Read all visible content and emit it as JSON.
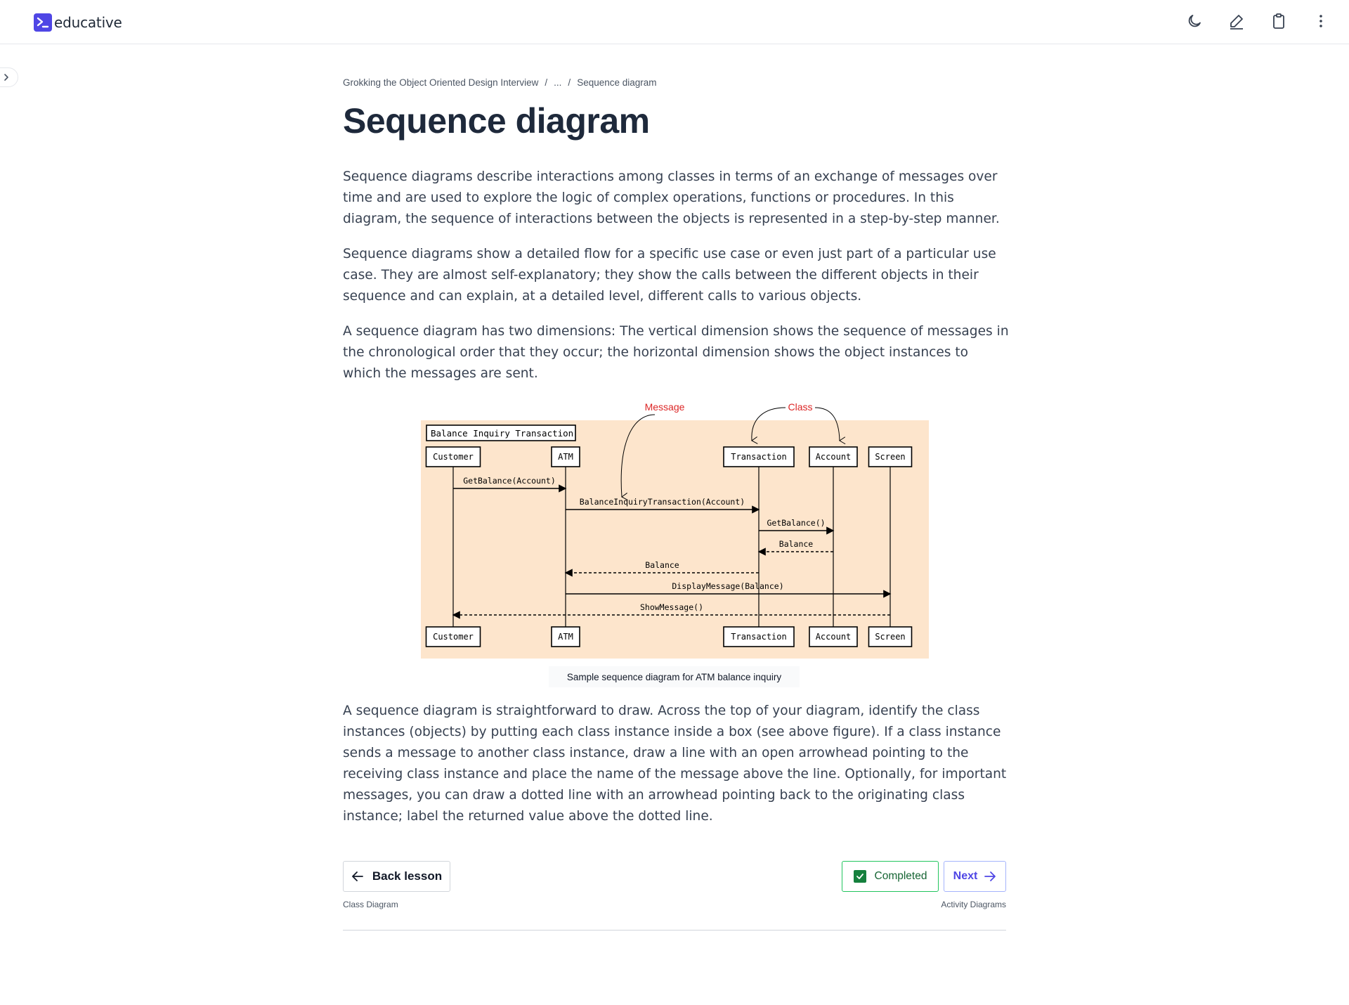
{
  "header": {
    "brand": "educative",
    "icons": [
      "moon-icon",
      "pen-icon",
      "clipboard-icon",
      "more-vertical-icon"
    ]
  },
  "sidebar": {
    "toggle_icon": "chevron-right-icon"
  },
  "breadcrumb": {
    "course": "Grokking the Object Oriented Design Interview",
    "separator": "/",
    "ellipsis": "...",
    "current": "Sequence diagram"
  },
  "page_title": "Sequence diagram",
  "paragraphs": [
    "Sequence diagrams describe interactions among classes in terms of an exchange of messages over time and are used to explore the logic of complex operations, functions or procedures. In this diagram, the sequence of interactions between the objects is represented in a step-by-step manner.",
    "Sequence diagrams show a detailed flow for a specific use case or even just part of a particular use case. They are almost self-explanatory; they show the calls between the different objects in their sequence and can explain, at a detailed level, different calls to various objects.",
    "A sequence diagram has two dimensions: The vertical dimension shows the sequence of messages in the chronological order that they occur; the horizontal dimension shows the object instances to which the messages are sent.",
    "A sequence diagram is straightforward to draw. Across the top of your diagram, identify the class instances (objects) by putting each class instance inside a box (see above figure). If a class instance sends a message to another class instance, draw a line with an open arrowhead pointing to the receiving class instance and place the name of the message above the line. Optionally, for important messages, you can draw a dotted line with an arrowhead pointing back to the originating class instance; label the returned value above the dotted line."
  ],
  "diagram": {
    "frame_title": "Balance Inquiry Transaction",
    "annotation_message": "Message",
    "annotation_class": "Class",
    "participants": [
      "Customer",
      "ATM",
      "Transaction",
      "Account",
      "Screen"
    ],
    "messages": [
      {
        "from": "Customer",
        "to": "ATM",
        "label": "GetBalance(Account)",
        "type": "call"
      },
      {
        "from": "ATM",
        "to": "Transaction",
        "label": "BalanceInquiryTransaction(Account)",
        "type": "call"
      },
      {
        "from": "Transaction",
        "to": "Account",
        "label": "GetBalance()",
        "type": "call"
      },
      {
        "from": "Account",
        "to": "Transaction",
        "label": "Balance",
        "type": "return"
      },
      {
        "from": "Transaction",
        "to": "ATM",
        "label": "Balance",
        "type": "return"
      },
      {
        "from": "ATM",
        "to": "Screen",
        "label": "DisplayMessage(Balance)",
        "type": "call"
      },
      {
        "from": "Screen",
        "to": "Customer",
        "label": "ShowMessage()",
        "type": "return"
      }
    ],
    "caption": "Sample sequence diagram for ATM balance inquiry",
    "colors": {
      "background": "#fde5cc",
      "annotation": "#dc2626"
    }
  },
  "navigation": {
    "back_label": "Back lesson",
    "back_sub": "Class Diagram",
    "completed_label": "Completed",
    "next_label": "Next",
    "next_sub": "Activity Diagrams"
  },
  "colors": {
    "accent": "#4f46e5",
    "success": "#22c55e"
  }
}
